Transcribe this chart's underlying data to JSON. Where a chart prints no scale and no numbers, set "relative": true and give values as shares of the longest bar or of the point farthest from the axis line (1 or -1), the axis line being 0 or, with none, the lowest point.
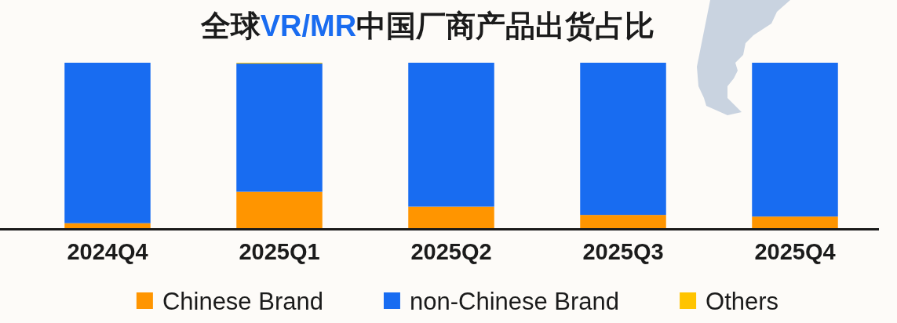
{
  "chart_data": {
    "type": "bar",
    "title": "全球VR/MR中国厂商产品出货占比",
    "categories": [
      "2024Q4",
      "2025Q1",
      "2025Q2",
      "2025Q3",
      "2025Q4"
    ],
    "stacked": true,
    "relative": true,
    "legend": "bottom",
    "series": [
      {
        "name": "Chinese Brand",
        "color": "#ff9500",
        "values": [
          0.03,
          0.22,
          0.13,
          0.08,
          0.07
        ]
      },
      {
        "name": "non-Chinese Brand",
        "color": "#186cf1",
        "values": [
          0.97,
          0.775,
          0.87,
          0.92,
          0.93
        ]
      },
      {
        "name": "Others",
        "color": "#ffc400",
        "values": [
          0,
          0.005,
          0,
          0,
          0
        ]
      }
    ]
  }
}
